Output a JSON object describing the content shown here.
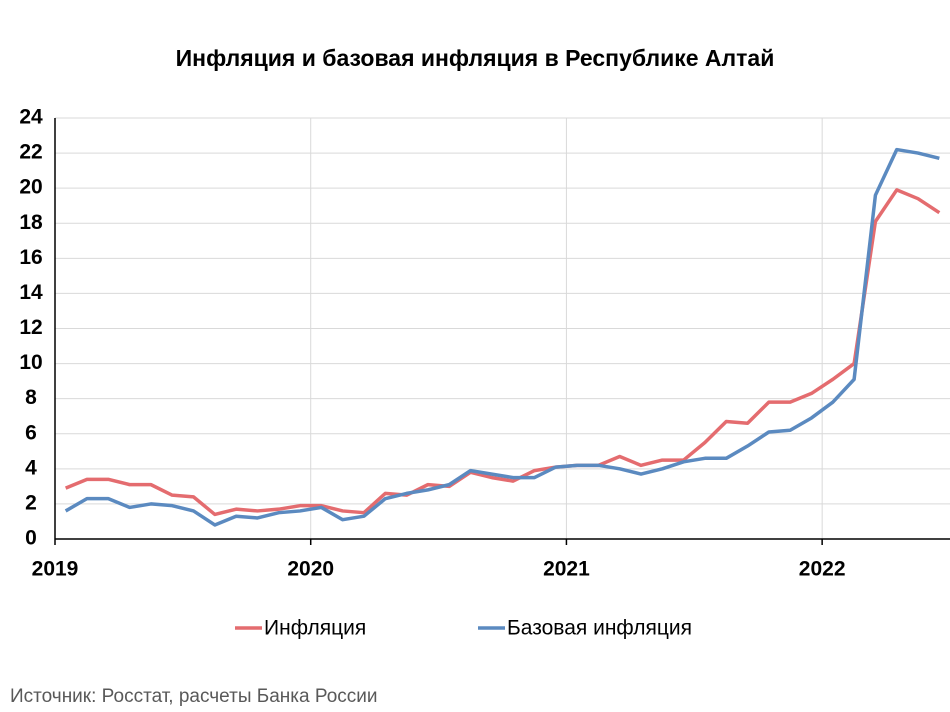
{
  "chart_data": {
    "type": "line",
    "title": "Инфляция и базовая инфляция в Республике Алтай",
    "source": "Источник: Росстат, расчеты Банка России",
    "x": [
      0.5,
      1.5,
      2.5,
      3.5,
      4.5,
      5.5,
      6.5,
      7.5,
      8.5,
      9.5,
      10.5,
      11.5,
      12.5,
      13.5,
      14.5,
      15.5,
      16.5,
      17.5,
      18.5,
      19.5,
      20.5,
      21.5,
      22.5,
      23.5,
      24.5,
      25.5,
      26.5,
      27.5,
      28.5,
      29.5,
      30.5,
      31.5,
      32.5,
      33.5,
      34.5,
      35.5,
      36.5,
      37.5,
      38.5,
      39.5,
      40.5,
      41.5
    ],
    "series": [
      {
        "name": "Инфляция",
        "color": "#e46c6f",
        "values": [
          2.9,
          3.4,
          3.4,
          3.1,
          3.1,
          2.5,
          2.4,
          1.4,
          1.7,
          1.6,
          1.7,
          1.9,
          1.9,
          1.6,
          1.5,
          2.6,
          2.5,
          3.1,
          3.0,
          3.8,
          3.5,
          3.3,
          3.9,
          4.1,
          4.2,
          4.2,
          4.7,
          4.2,
          4.5,
          4.5,
          5.5,
          6.7,
          6.6,
          7.8,
          7.8,
          8.3,
          9.1,
          10.0,
          18.1,
          19.9,
          19.4,
          18.6
        ]
      },
      {
        "name": "Базовая инфляция",
        "color": "#5b8ac0",
        "values": [
          1.6,
          2.3,
          2.3,
          1.8,
          2.0,
          1.9,
          1.6,
          0.8,
          1.3,
          1.2,
          1.5,
          1.6,
          1.8,
          1.1,
          1.3,
          2.3,
          2.6,
          2.8,
          3.1,
          3.9,
          3.7,
          3.5,
          3.5,
          4.1,
          4.2,
          4.2,
          4.0,
          3.7,
          4.0,
          4.4,
          4.6,
          4.6,
          5.3,
          6.1,
          6.2,
          6.9,
          7.8,
          9.1,
          19.6,
          22.2,
          22.0,
          21.7
        ]
      }
    ],
    "xlim": [
      0,
      42
    ],
    "xticks": [
      {
        "value": 0,
        "label": "2019"
      },
      {
        "value": 12,
        "label": "2020"
      },
      {
        "value": 24,
        "label": "2021"
      },
      {
        "value": 36,
        "label": "2022"
      }
    ],
    "ylim": [
      0,
      24
    ],
    "yticks": [
      0,
      2,
      4,
      6,
      8,
      10,
      12,
      14,
      16,
      18,
      20,
      22,
      24
    ],
    "grid": true,
    "legend": "bottom"
  }
}
